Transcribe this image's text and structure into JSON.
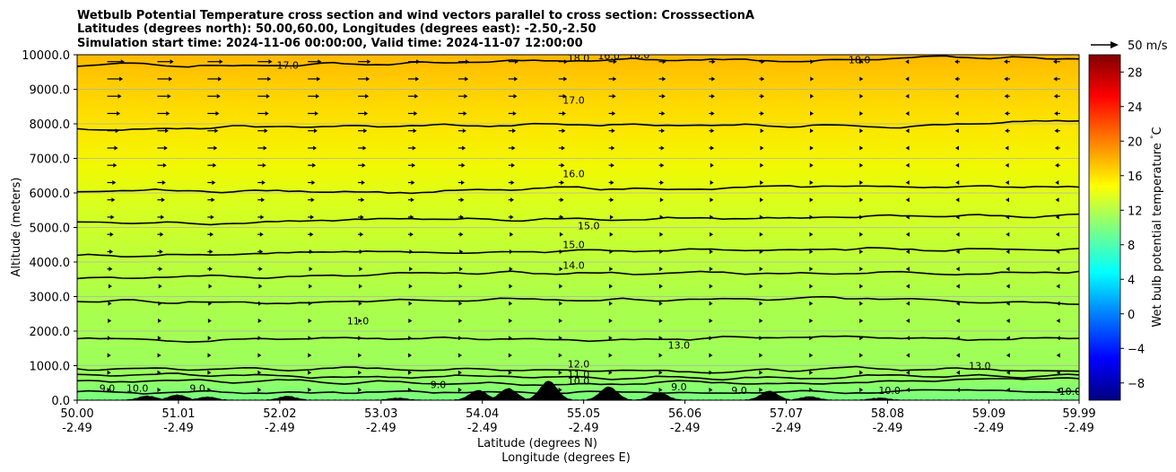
{
  "chart_data": {
    "type": "heatmap",
    "title_lines": [
      "Wetbulb Potential Temperature cross section and wind vectors parallel to cross section: CrosssectionA",
      "Latitudes (degrees north): 50.00,60.00, Longitudes (degrees east): -2.50,-2.50",
      "Simulation start time: 2024-11-06 00:00:00, Valid time: 2024-11-07 12:00:00"
    ],
    "xlabel_line1": "Latitude (degrees N)",
    "xlabel_line2": "Longitude (degrees E)",
    "ylabel": "Altitude (meters)",
    "x_ticks_lat": [
      "50.00",
      "51.01",
      "52.02",
      "53.03",
      "54.04",
      "55.05",
      "56.06",
      "57.07",
      "58.08",
      "59.09",
      "59.99"
    ],
    "x_ticks_lon": [
      "-2.49",
      "-2.49",
      "-2.49",
      "-2.49",
      "-2.49",
      "-2.49",
      "-2.49",
      "-2.49",
      "-2.49",
      "-2.49",
      "-2.49"
    ],
    "x_range": [
      50.0,
      59.99
    ],
    "y_ticks": [
      "0.0",
      "1000.0",
      "2000.0",
      "3000.0",
      "4000.0",
      "5000.0",
      "6000.0",
      "7000.0",
      "8000.0",
      "9000.0",
      "10000.0"
    ],
    "y_range": [
      0,
      10000
    ],
    "grid": "horizontal",
    "colorbar": {
      "label": "Wet bulb potential temperature $^\\circ$C",
      "ticks": [
        "−8",
        "−4",
        "0",
        "4",
        "8",
        "12",
        "16",
        "20",
        "24",
        "28"
      ],
      "tick_values": [
        -8,
        -4,
        0,
        4,
        8,
        12,
        16,
        20,
        24,
        28
      ],
      "range": [
        -10,
        30
      ],
      "colormap": "jet"
    },
    "quiver_key_label": "50 m/s",
    "field_samples": {
      "altitudes": [
        0,
        500,
        1000,
        2000,
        3000,
        4000,
        5000,
        6000,
        7000,
        8000,
        9000,
        10000
      ],
      "temperature_c": [
        9.5,
        10.5,
        12.0,
        12.0,
        13.5,
        14.5,
        15.0,
        16.0,
        16.5,
        17.0,
        17.5,
        18.5
      ]
    },
    "contours": [
      {
        "level": "9.0",
        "altitude": 250
      },
      {
        "level": "10.0",
        "altitude": 550
      },
      {
        "level": "11.0",
        "altitude": 700
      },
      {
        "level": "12.0",
        "altitude": 900
      },
      {
        "level": "13.0",
        "altitude": 1800
      },
      {
        "level": "13.0",
        "altitude": 2900
      },
      {
        "level": "14.0",
        "altitude": 3550
      },
      {
        "level": "15.0",
        "altitude": 4200
      },
      {
        "level": "15.0",
        "altitude": 5150
      },
      {
        "level": "16.0",
        "altitude": 6000
      },
      {
        "level": "17.0",
        "altitude": 7850
      },
      {
        "level": "18.0",
        "altitude": 9700
      }
    ],
    "contour_labels": [
      {
        "text": "18.0",
        "x": 55.0,
        "y": 9800
      },
      {
        "text": "16.0",
        "x": 55.3,
        "y": 9870
      },
      {
        "text": "16.0",
        "x": 55.6,
        "y": 9900
      },
      {
        "text": "18.0",
        "x": 57.8,
        "y": 9750
      },
      {
        "text": "17.0",
        "x": 52.1,
        "y": 9600
      },
      {
        "text": "17.0",
        "x": 54.95,
        "y": 8580
      },
      {
        "text": "16.0",
        "x": 54.95,
        "y": 6450
      },
      {
        "text": "15.0",
        "x": 55.1,
        "y": 4950
      },
      {
        "text": "15.0",
        "x": 54.95,
        "y": 4400
      },
      {
        "text": "14.0",
        "x": 54.95,
        "y": 3800
      },
      {
        "text": "11.0",
        "x": 52.8,
        "y": 2200
      },
      {
        "text": "13.0",
        "x": 56.0,
        "y": 1500
      },
      {
        "text": "13.0",
        "x": 59.0,
        "y": 900
      },
      {
        "text": "12.0",
        "x": 55.0,
        "y": 950
      },
      {
        "text": "11.0",
        "x": 55.0,
        "y": 650
      },
      {
        "text": "10.0",
        "x": 55.0,
        "y": 450
      },
      {
        "text": "9.0",
        "x": 50.3,
        "y": 250
      },
      {
        "text": "10.0",
        "x": 50.6,
        "y": 250
      },
      {
        "text": "9.0",
        "x": 51.2,
        "y": 250
      },
      {
        "text": "9.0",
        "x": 53.6,
        "y": 350
      },
      {
        "text": "9.0",
        "x": 56.0,
        "y": 280
      },
      {
        "text": "9.0",
        "x": 56.6,
        "y": 180
      },
      {
        "text": "10.0",
        "x": 58.1,
        "y": 180
      },
      {
        "text": "10.0",
        "x": 59.9,
        "y": 150
      }
    ],
    "wind_vectors": {
      "description": "arrows parallel to cross section; strongest (eastward-pointing, northward) in upper-left, reversed (southward) upper-right",
      "rows_altitude": [
        300,
        800,
        1300,
        1800,
        2300,
        2800,
        3300,
        3800,
        4300,
        4800,
        5300,
        5800,
        6300,
        6800,
        7300,
        7800,
        8300,
        8800,
        9300,
        9800
      ],
      "cols_latitude": [
        50.3,
        50.8,
        51.3,
        51.8,
        52.3,
        52.8,
        53.3,
        53.8,
        54.3,
        54.8,
        55.3,
        55.8,
        56.3,
        56.8,
        57.3,
        57.8,
        58.3,
        58.8,
        59.3,
        59.8
      ],
      "speed_upper_left_ms": 30,
      "speed_upper_right_ms": -8
    },
    "terrain_peaks": [
      {
        "lat": 50.7,
        "h": 120
      },
      {
        "lat": 51.0,
        "h": 150
      },
      {
        "lat": 51.3,
        "h": 90
      },
      {
        "lat": 52.1,
        "h": 110
      },
      {
        "lat": 53.2,
        "h": 60
      },
      {
        "lat": 54.0,
        "h": 280
      },
      {
        "lat": 54.3,
        "h": 330
      },
      {
        "lat": 54.7,
        "h": 550
      },
      {
        "lat": 55.3,
        "h": 380
      },
      {
        "lat": 55.8,
        "h": 220
      },
      {
        "lat": 56.9,
        "h": 260
      },
      {
        "lat": 57.3,
        "h": 100
      },
      {
        "lat": 58.0,
        "h": 60
      }
    ]
  }
}
